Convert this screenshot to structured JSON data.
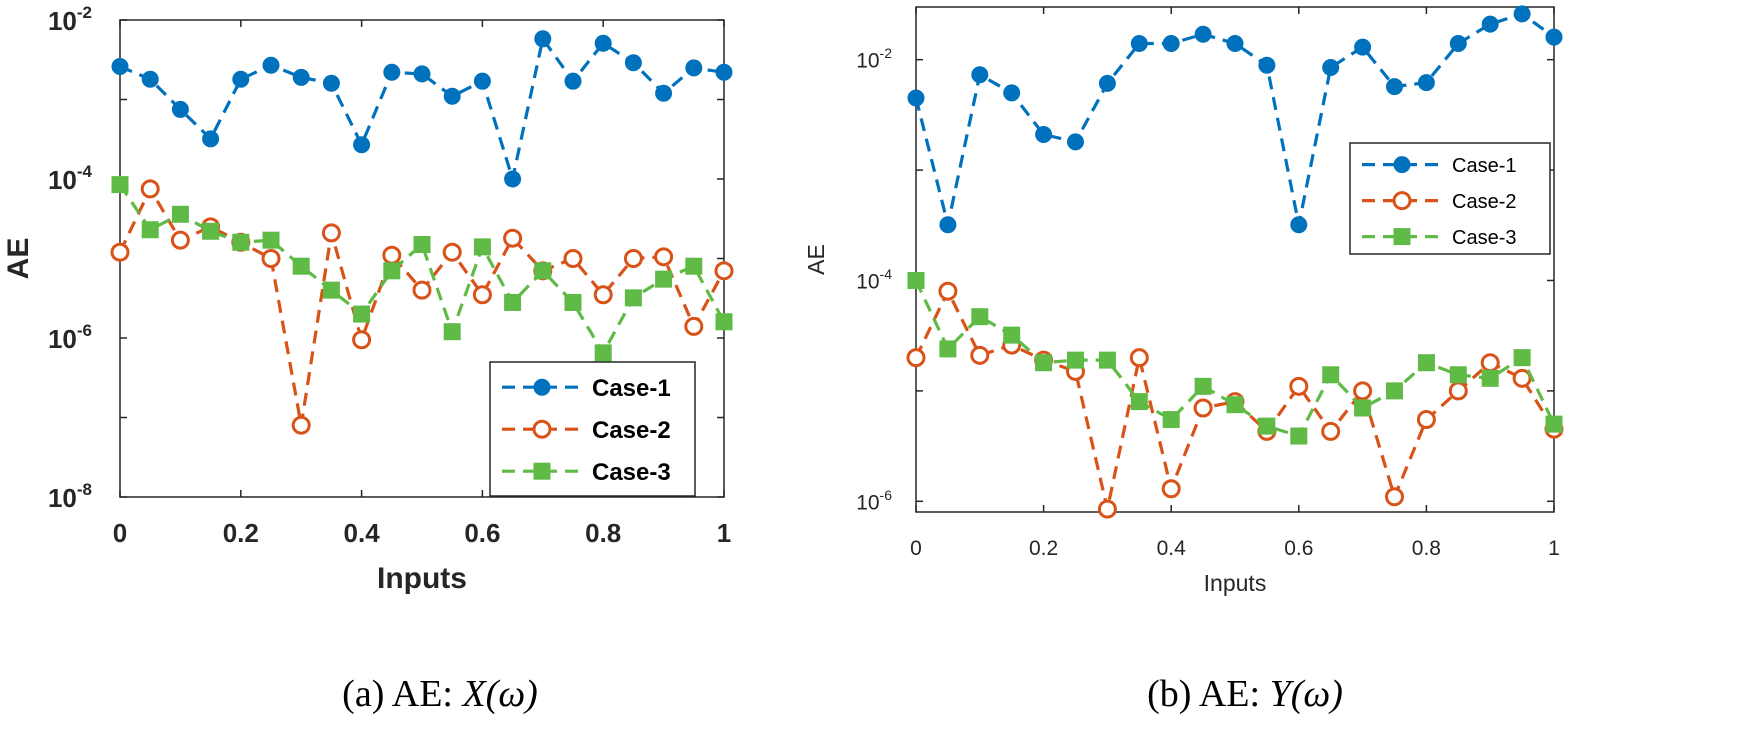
{
  "figure": {
    "colors": {
      "case1": "#0072bd",
      "case2": "#d95319",
      "case3": "#5fba46"
    },
    "panels": [
      {
        "id": "a",
        "caption_prefix": "(a) AE: ",
        "caption_math": "X(ω)",
        "chart_data": {
          "type": "line",
          "xlabel": "Inputs",
          "ylabel": "AE",
          "xlim": [
            0,
            1
          ],
          "ylim": [
            1e-08,
            0.01
          ],
          "yscale": "log",
          "xticks": [
            "0",
            "0.2",
            "0.4",
            "0.6",
            "0.8",
            "1"
          ],
          "yticks": [
            {
              "base": "10",
              "exp": "-8"
            },
            {
              "base": "10",
              "exp": "-6"
            },
            {
              "base": "10",
              "exp": "-4"
            },
            {
              "base": "10",
              "exp": "-2"
            }
          ],
          "legend": {
            "position": "bottom-right",
            "entries": [
              "Case-1",
              "Case-2",
              "Case-3"
            ]
          },
          "grid": false,
          "x": [
            0,
            0.05,
            0.1,
            0.15,
            0.2,
            0.25,
            0.3,
            0.35,
            0.4,
            0.45,
            0.5,
            0.55,
            0.6,
            0.65,
            0.7,
            0.75,
            0.8,
            0.85,
            0.9,
            0.95,
            1
          ],
          "series": [
            {
              "name": "Case-1",
              "style": "dashed",
              "marker": "filled-circle",
              "values": [
                0.0026,
                0.0018,
                0.00075,
                0.00032,
                0.0018,
                0.0027,
                0.0019,
                0.0016,
                0.00027,
                0.0022,
                0.0021,
                0.0011,
                0.0017,
                0.0001,
                0.0058,
                0.0017,
                0.0051,
                0.0029,
                0.0012,
                0.0025,
                0.0022
              ]
            },
            {
              "name": "Case-2",
              "style": "dashed",
              "marker": "open-circle",
              "values": [
                1.2e-05,
                7.5e-05,
                1.7e-05,
                2.5e-05,
                1.6e-05,
                1e-05,
                8e-08,
                2.1e-05,
                9.5e-07,
                1.1e-05,
                4e-06,
                1.2e-05,
                3.5e-06,
                1.8e-05,
                7e-06,
                1e-05,
                3.5e-06,
                1e-05,
                1.05e-05,
                1.4e-06,
                7e-06
              ]
            },
            {
              "name": "Case-3",
              "style": "dashed",
              "marker": "filled-square",
              "values": [
                8.5e-05,
                2.3e-05,
                3.6e-05,
                2.2e-05,
                1.6e-05,
                1.7e-05,
                8e-06,
                4e-06,
                2e-06,
                7e-06,
                1.5e-05,
                1.2e-06,
                1.4e-05,
                2.8e-06,
                7e-06,
                2.8e-06,
                6.5e-07,
                3.2e-06,
                5.5e-06,
                8e-06,
                1.6e-06
              ]
            }
          ]
        }
      },
      {
        "id": "b",
        "caption_prefix": "(b) AE: ",
        "caption_math": "Y(ω)",
        "chart_data": {
          "type": "line",
          "xlabel": "Inputs",
          "ylabel": "AE",
          "xlim": [
            0,
            1
          ],
          "ylim": [
            8e-07,
            0.03
          ],
          "yscale": "log",
          "xticks": [
            "0",
            "0.2",
            "0.4",
            "0.6",
            "0.8",
            "1"
          ],
          "yticks": [
            {
              "base": "10",
              "exp": "-6"
            },
            {
              "base": "10",
              "exp": "-4"
            },
            {
              "base": "10",
              "exp": "-2"
            }
          ],
          "legend": {
            "position": "top-right",
            "entries": [
              "Case-1",
              "Case-2",
              "Case-3"
            ]
          },
          "grid": false,
          "x": [
            0,
            0.05,
            0.1,
            0.15,
            0.2,
            0.25,
            0.3,
            0.35,
            0.4,
            0.45,
            0.5,
            0.55,
            0.6,
            0.65,
            0.7,
            0.75,
            0.8,
            0.85,
            0.9,
            0.95,
            1
          ],
          "series": [
            {
              "name": "Case-1",
              "style": "dashed",
              "marker": "filled-circle",
              "values": [
                0.0045,
                0.00032,
                0.0073,
                0.005,
                0.0021,
                0.0018,
                0.0061,
                0.014,
                0.014,
                0.017,
                0.014,
                0.0089,
                0.00032,
                0.0085,
                0.013,
                0.0057,
                0.0062,
                0.014,
                0.021,
                0.026,
                0.016
              ]
            },
            {
              "name": "Case-2",
              "style": "dashed",
              "marker": "open-circle",
              "values": [
                2e-05,
                8e-05,
                2.1e-05,
                2.6e-05,
                1.9e-05,
                1.5e-05,
                8.5e-07,
                2e-05,
                1.3e-06,
                7e-06,
                8e-06,
                4.3e-06,
                1.1e-05,
                4.3e-06,
                1e-05,
                1.1e-06,
                5.5e-06,
                1e-05,
                1.8e-05,
                1.3e-05,
                4.5e-06
              ]
            },
            {
              "name": "Case-3",
              "style": "dashed",
              "marker": "filled-square",
              "values": [
                0.0001,
                2.4e-05,
                4.7e-05,
                3.2e-05,
                1.8e-05,
                1.9e-05,
                1.9e-05,
                8e-06,
                5.5e-06,
                1.1e-05,
                7.5e-06,
                4.8e-06,
                3.9e-06,
                1.4e-05,
                7e-06,
                1e-05,
                1.8e-05,
                1.4e-05,
                1.3e-05,
                2e-05,
                5e-06
              ]
            }
          ]
        }
      }
    ]
  }
}
